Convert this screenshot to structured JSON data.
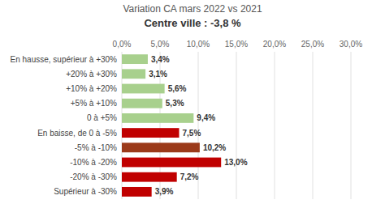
{
  "chart_data": {
    "type": "bar",
    "orientation": "horizontal",
    "title": "Variation CA mars 2022 vs 2021",
    "subtitle": "Centre ville : -3,8 %",
    "categories": [
      "En hausse, supérieur à +30%",
      "+20% à +30%",
      "+10% à +20%",
      "+5% à +10%",
      "0 à +5%",
      "En baisse, de 0 à -5%",
      "-5% à -10%",
      "-10% à -20%",
      "-20% à -30%",
      "Supérieur à -30%"
    ],
    "values": [
      3.4,
      3.1,
      5.6,
      5.3,
      9.4,
      7.5,
      10.2,
      13.0,
      7.2,
      3.9
    ],
    "value_labels": [
      "3,4%",
      "3,1%",
      "5,6%",
      "5,3%",
      "9,4%",
      "7,5%",
      "10,2%",
      "13,0%",
      "7,2%",
      "3,9%"
    ],
    "colors": [
      "#a8d08d",
      "#a8d08d",
      "#a8d08d",
      "#a8d08d",
      "#a8d08d",
      "#c00000",
      "#9b3a1a",
      "#c00000",
      "#c00000",
      "#c00000"
    ],
    "xlim": [
      0,
      30
    ],
    "xticks": [
      {
        "value": 0.0,
        "label": "0,0%"
      },
      {
        "value": 5.0,
        "label": "5,0%"
      },
      {
        "value": 10.0,
        "label": "10,0%"
      },
      {
        "value": 15.0,
        "label": "15,0%"
      },
      {
        "value": 20.0,
        "label": "20,0%"
      },
      {
        "value": 25.0,
        "label": "25,0%"
      },
      {
        "value": 30.0,
        "label": "30,0%"
      }
    ],
    "grid": true,
    "data_labels": true
  }
}
